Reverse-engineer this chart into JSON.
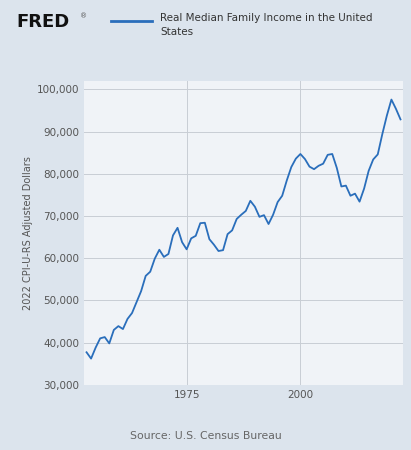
{
  "title_line1": "Real Median Family Income in the United",
  "title_line2": "States",
  "ylabel": "2022 CPI-U-RS Adjusted Dollars",
  "source": "Source: U.S. Census Bureau",
  "line_color": "#2a6ebb",
  "background_color": "#dce4ed",
  "plot_bg_color": "#f0f3f7",
  "ylim": [
    30000,
    102000
  ],
  "yticks": [
    30000,
    40000,
    50000,
    60000,
    70000,
    80000,
    90000,
    100000
  ],
  "xticks": [
    1975,
    2000
  ],
  "years": [
    1953,
    1954,
    1955,
    1956,
    1957,
    1958,
    1959,
    1960,
    1961,
    1962,
    1963,
    1964,
    1965,
    1966,
    1967,
    1968,
    1969,
    1970,
    1971,
    1972,
    1973,
    1974,
    1975,
    1976,
    1977,
    1978,
    1979,
    1980,
    1981,
    1982,
    1983,
    1984,
    1985,
    1986,
    1987,
    1988,
    1989,
    1990,
    1991,
    1992,
    1993,
    1994,
    1995,
    1996,
    1997,
    1998,
    1999,
    2000,
    2001,
    2002,
    2003,
    2004,
    2005,
    2006,
    2007,
    2008,
    2009,
    2010,
    2011,
    2012,
    2013,
    2014,
    2015,
    2016,
    2017,
    2018,
    2019,
    2020,
    2021,
    2022
  ],
  "values": [
    37700,
    36200,
    38800,
    41000,
    41300,
    39800,
    43000,
    43900,
    43200,
    45600,
    47000,
    49600,
    52200,
    55800,
    56800,
    59900,
    62000,
    60300,
    61000,
    65400,
    67200,
    63800,
    62100,
    64700,
    65300,
    68300,
    68400,
    64500,
    63200,
    61700,
    61900,
    65700,
    66600,
    69300,
    70300,
    71200,
    73600,
    72200,
    69800,
    70200,
    68100,
    70300,
    73300,
    74800,
    78400,
    81600,
    83600,
    84700,
    83500,
    81700,
    81100,
    81900,
    82400,
    84500,
    84700,
    81400,
    77000,
    77200,
    74800,
    75300,
    73400,
    76500,
    80700,
    83400,
    84600,
    89400,
    93800,
    97600,
    95400,
    92900
  ],
  "fred_text_color": "#111111",
  "tick_color": "#555555",
  "grid_color": "#c8cdd4",
  "source_color": "#666666"
}
